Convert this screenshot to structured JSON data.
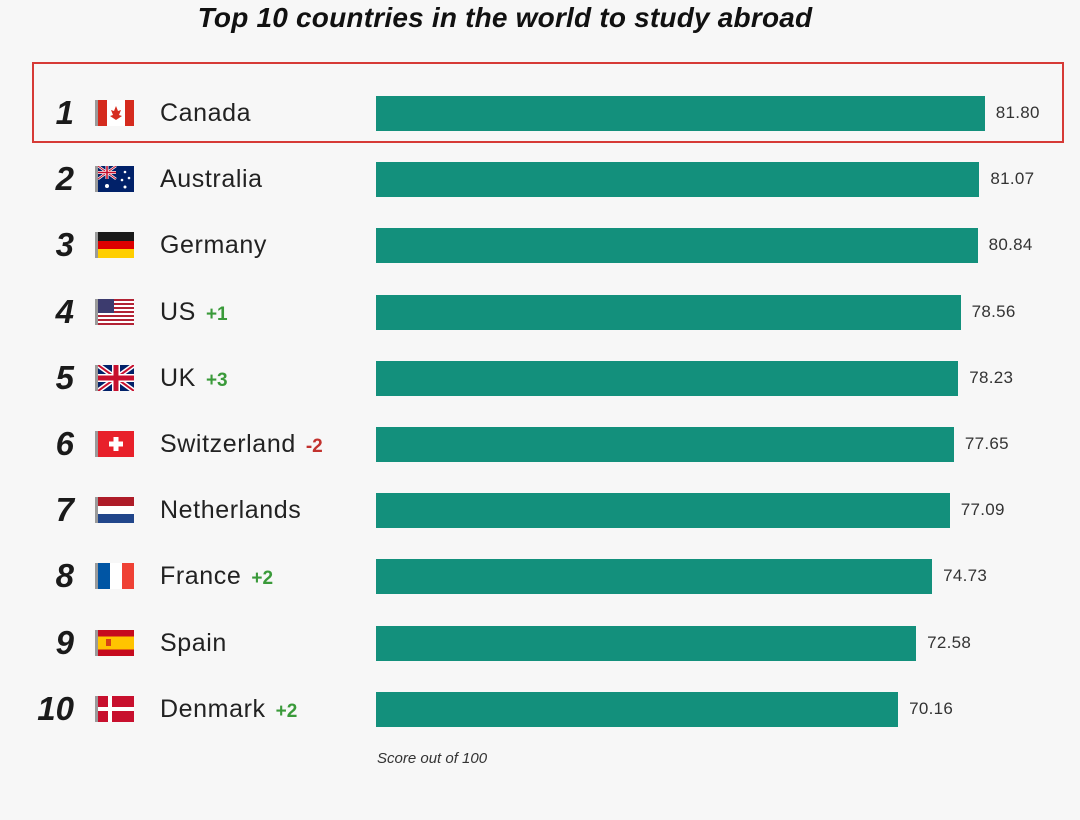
{
  "chart_data": {
    "type": "bar",
    "orientation": "horizontal",
    "title": "Top 10 countries in the world to study abroad",
    "xlabel": "Score out of 100",
    "ylabel": "",
    "xlim": [
      0,
      100
    ],
    "highlighted_rank": 1,
    "rows": [
      {
        "rank": "1",
        "country": "Canada",
        "change": "",
        "value": 81.8,
        "value_label": "81.80",
        "flag": "canada-flag-icon"
      },
      {
        "rank": "2",
        "country": "Australia",
        "change": "",
        "value": 81.07,
        "value_label": "81.07",
        "flag": "australia-flag-icon"
      },
      {
        "rank": "3",
        "country": "Germany",
        "change": "",
        "value": 80.84,
        "value_label": "80.84",
        "flag": "germany-flag-icon"
      },
      {
        "rank": "4",
        "country": "US",
        "change": "+1",
        "value": 78.56,
        "value_label": "78.56",
        "flag": "us-flag-icon"
      },
      {
        "rank": "5",
        "country": "UK",
        "change": "+3",
        "value": 78.23,
        "value_label": "78.23",
        "flag": "uk-flag-icon"
      },
      {
        "rank": "6",
        "country": "Switzerland",
        "change": "-2",
        "value": 77.65,
        "value_label": "77.65",
        "flag": "switzerland-flag-icon"
      },
      {
        "rank": "7",
        "country": "Netherlands",
        "change": "",
        "value": 77.09,
        "value_label": "77.09",
        "flag": "netherlands-flag-icon"
      },
      {
        "rank": "8",
        "country": "France",
        "change": "+2",
        "value": 74.73,
        "value_label": "74.73",
        "flag": "france-flag-icon"
      },
      {
        "rank": "9",
        "country": "Spain",
        "change": "",
        "value": 72.58,
        "value_label": "72.58",
        "flag": "spain-flag-icon"
      },
      {
        "rank": "10",
        "country": "Denmark",
        "change": "+2",
        "value": 70.16,
        "value_label": "70.16",
        "flag": "denmark-flag-icon"
      }
    ]
  },
  "colors": {
    "bar": "#13907c",
    "positive_change": "#3a9a3a",
    "negative_change": "#c2322e",
    "highlight_border": "#d63a36"
  },
  "footnote": "Score out of 100"
}
